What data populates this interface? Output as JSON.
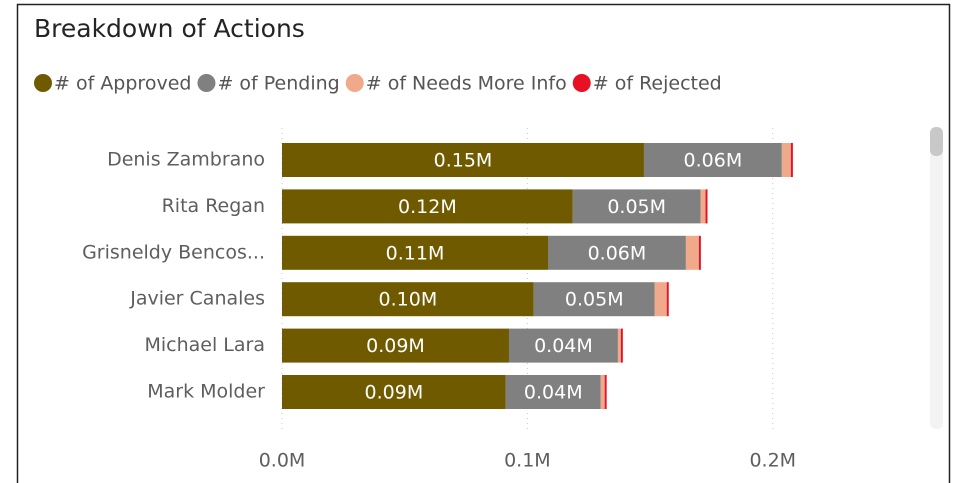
{
  "chart_data": {
    "type": "stacked-bar-horizontal",
    "title": "Breakdown of Actions",
    "categories": [
      "Denis Zambrano",
      "Rita Regan",
      "Grisneldy Bencos...",
      "Javier Canales",
      "Michael Lara",
      "Mark Molder"
    ],
    "series": [
      {
        "name": "# of Approved",
        "color": "#6f5a00",
        "values": [
          147500,
          118500,
          108400,
          102600,
          92500,
          91200
        ],
        "value_labels": [
          "0.15M",
          "0.12M",
          "0.11M",
          "0.10M",
          "0.09M",
          "0.09M"
        ]
      },
      {
        "name": "# of Pending",
        "color": "#808080",
        "values": [
          56200,
          52100,
          56200,
          49300,
          44400,
          38700
        ],
        "value_labels": [
          "0.06M",
          "0.05M",
          "0.06M",
          "0.05M",
          "0.04M",
          "0.04M"
        ]
      },
      {
        "name": "# of Needs More Info",
        "color": "#f0a98a",
        "values": [
          3700,
          2000,
          5300,
          4900,
          1200,
          1600
        ]
      },
      {
        "name": "# of Rejected",
        "color": "#e81123",
        "values": [
          800,
          800,
          800,
          800,
          800,
          800
        ]
      }
    ],
    "xlim": [
      0,
      260000
    ],
    "xticks": [
      {
        "value": 0,
        "label": "0.0M"
      },
      {
        "value": 100000,
        "label": "0.1M"
      },
      {
        "value": 200000,
        "label": "0.2M"
      }
    ],
    "grid": true
  }
}
